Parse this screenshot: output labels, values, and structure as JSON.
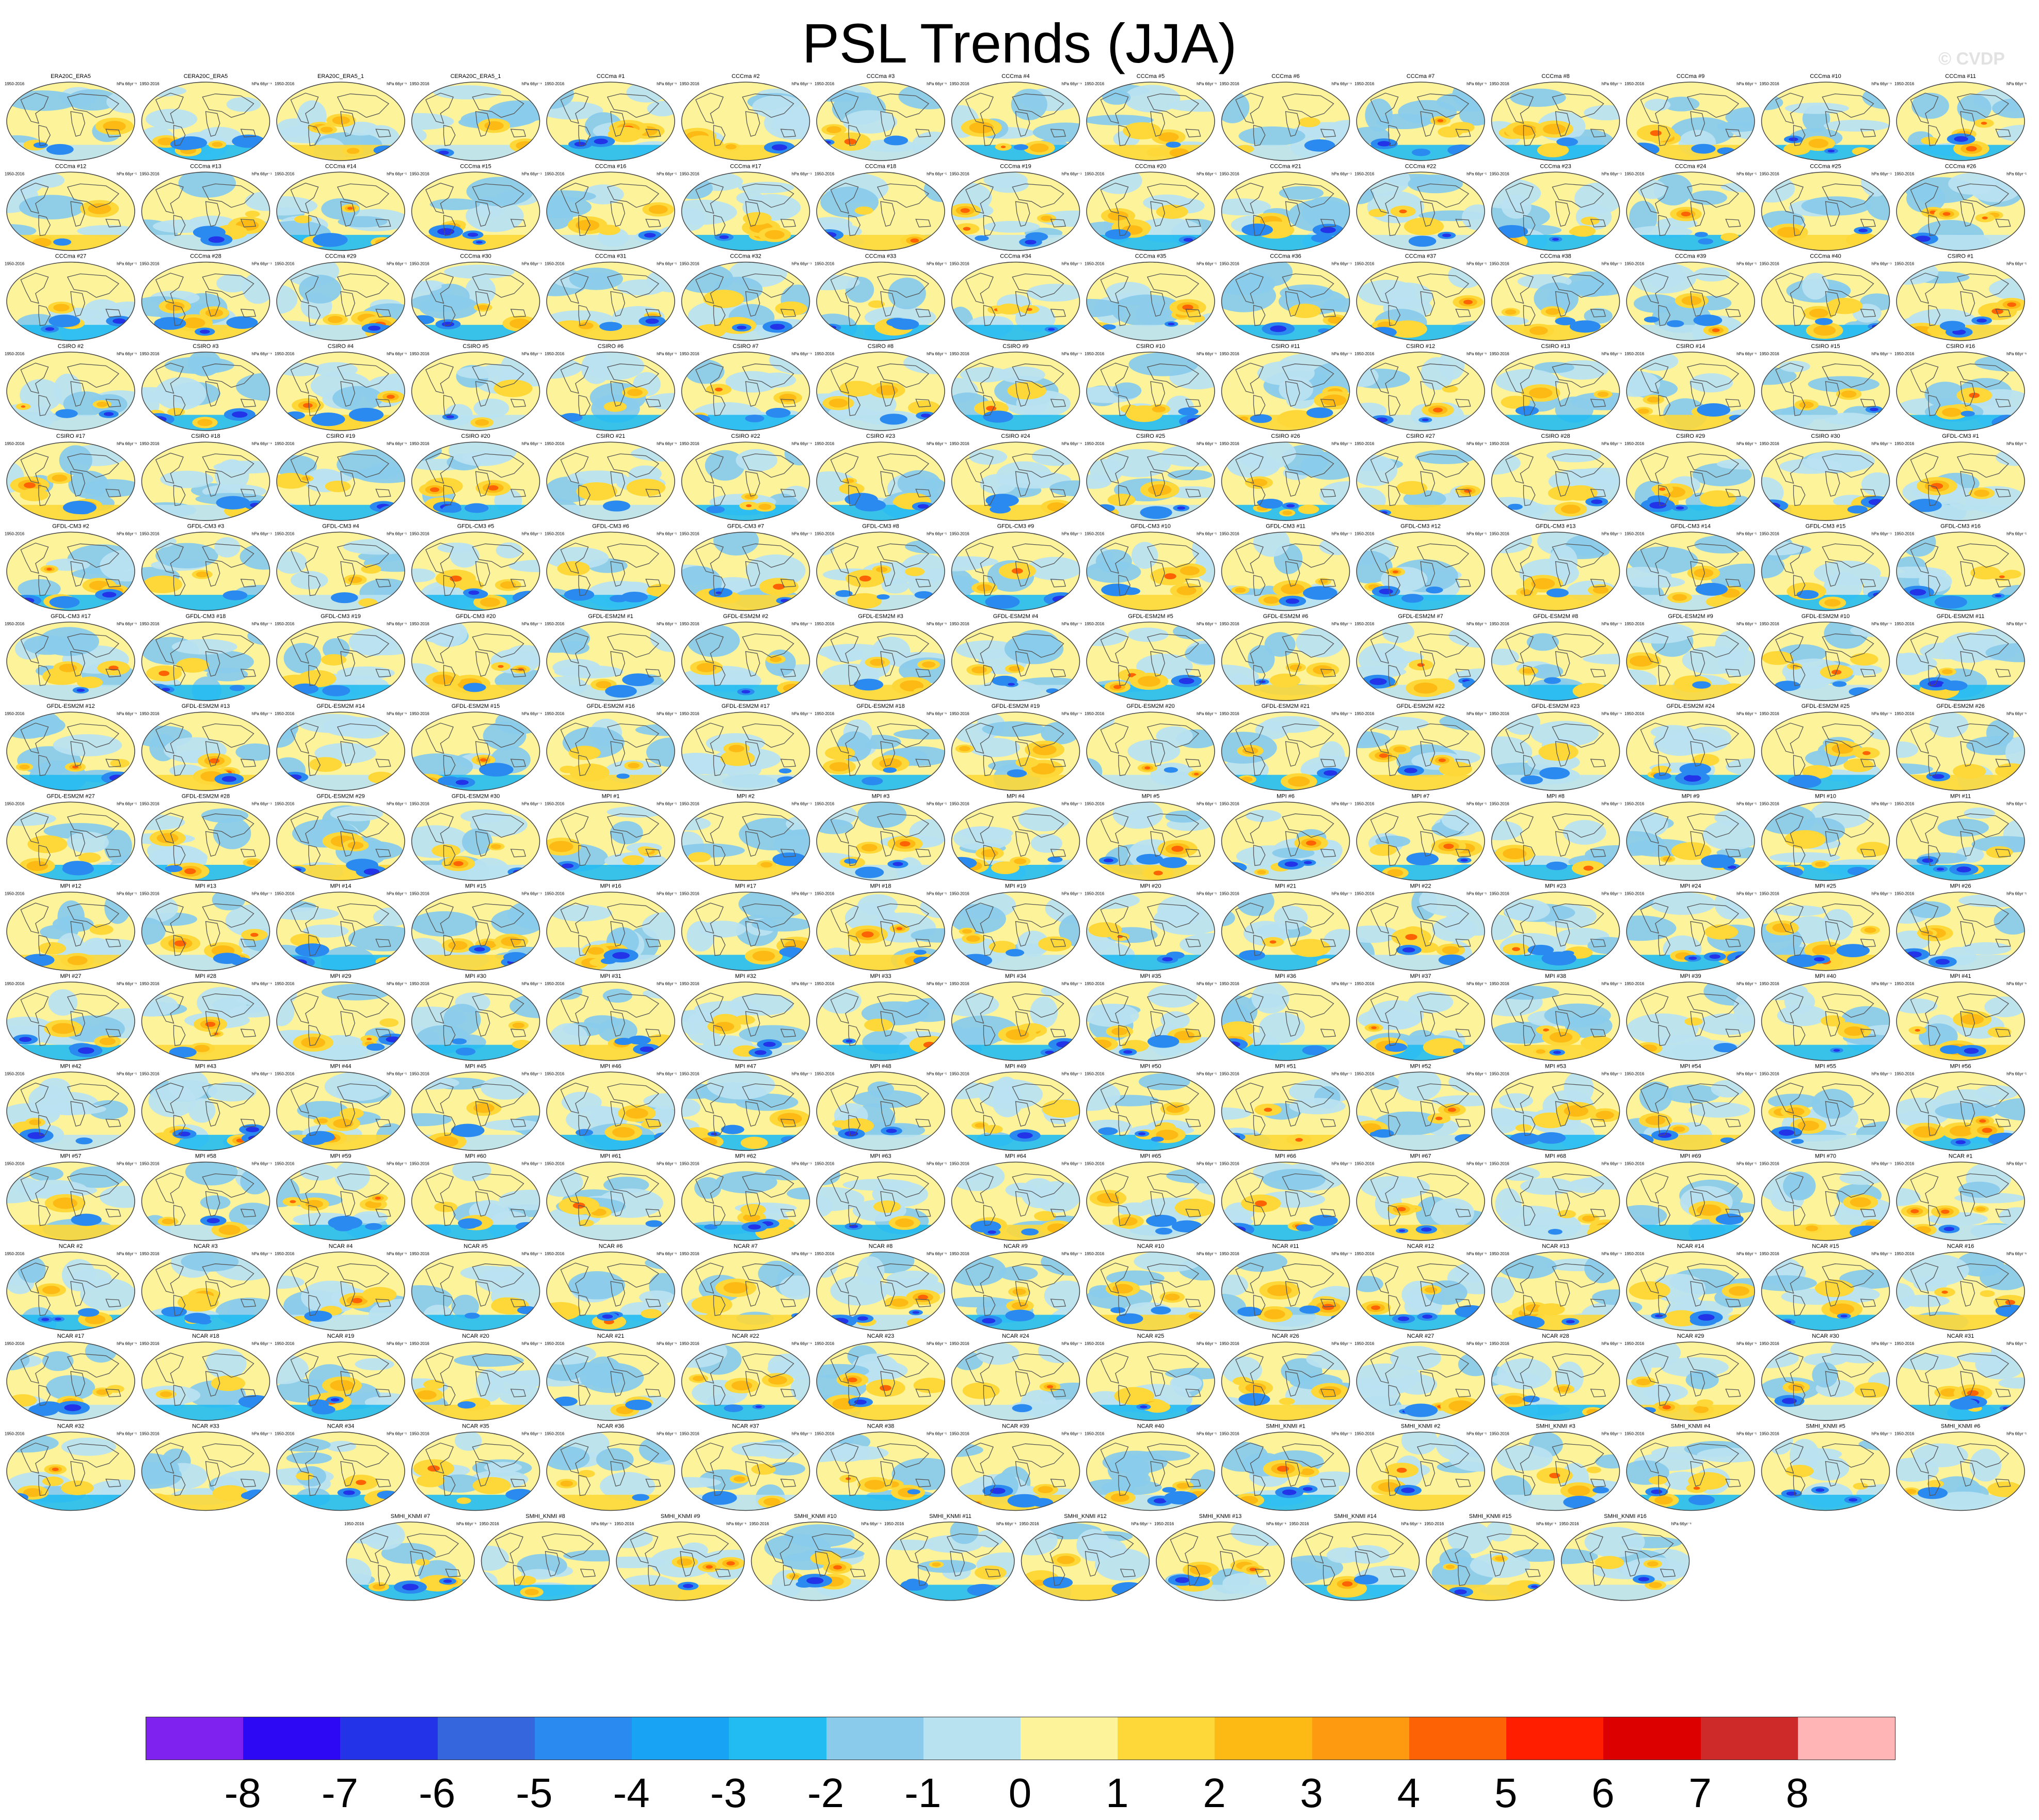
{
  "title": "PSL Trends (JJA)",
  "credit": "© CVDP",
  "colorbar": {
    "colors": [
      "#7f22f0",
      "#2d08f5",
      "#2233e8",
      "#3566de",
      "#2a8af0",
      "#19a3f5",
      "#22bbf2",
      "#8acbeb",
      "#b9e2f1",
      "#fdf39a",
      "#fdd838",
      "#fdb914",
      "#fd9a0f",
      "#fd6205",
      "#ff1f00",
      "#dd0000",
      "#cf2a2a",
      "#ffb5b5"
    ],
    "labels": [
      "-8",
      "-7",
      "-6",
      "-5",
      "-4",
      "-3",
      "-2",
      "-1",
      "0",
      "1",
      "2",
      "3",
      "4",
      "5",
      "6",
      "7",
      "8"
    ]
  },
  "panel_common": {
    "period_left": "1950-2016",
    "units": "hPa 66yr⁻¹"
  },
  "panels": [
    "ERA20C_ERA5",
    "CERA20C_ERA5",
    "ERA20C_ERA5_1",
    "CERA20C_ERA5_1",
    "CCCma #1",
    "CCCma #2",
    "CCCma #3",
    "CCCma #4",
    "CCCma #5",
    "CCCma #6",
    "CCCma #7",
    "CCCma #8",
    "CCCma #9",
    "CCCma #10",
    "CCCma #11",
    "CCCma #12",
    "CCCma #13",
    "CCCma #14",
    "CCCma #15",
    "CCCma #16",
    "CCCma #17",
    "CCCma #18",
    "CCCma #19",
    "CCCma #20",
    "CCCma #21",
    "CCCma #22",
    "CCCma #23",
    "CCCma #24",
    "CCCma #25",
    "CCCma #26",
    "CCCma #27",
    "CCCma #28",
    "CCCma #29",
    "CCCma #30",
    "CCCma #31",
    "CCCma #32",
    "CCCma #33",
    "CCCma #34",
    "CCCma #35",
    "CCCma #36",
    "CCCma #37",
    "CCCma #38",
    "CCCma #39",
    "CCCma #40",
    "CSIRO #1",
    "CSIRO #2",
    "CSIRO #3",
    "CSIRO #4",
    "CSIRO #5",
    "CSIRO #6",
    "CSIRO #7",
    "CSIRO #8",
    "CSIRO #9",
    "CSIRO #10",
    "CSIRO #11",
    "CSIRO #12",
    "CSIRO #13",
    "CSIRO #14",
    "CSIRO #15",
    "CSIRO #16",
    "CSIRO #17",
    "CSIRO #18",
    "CSIRO #19",
    "CSIRO #20",
    "CSIRO #21",
    "CSIRO #22",
    "CSIRO #23",
    "CSIRO #24",
    "CSIRO #25",
    "CSIRO #26",
    "CSIRO #27",
    "CSIRO #28",
    "CSIRO #29",
    "CSIRO #30",
    "GFDL-CM3 #1",
    "GFDL-CM3 #2",
    "GFDL-CM3 #3",
    "GFDL-CM3 #4",
    "GFDL-CM3 #5",
    "GFDL-CM3 #6",
    "GFDL-CM3 #7",
    "GFDL-CM3 #8",
    "GFDL-CM3 #9",
    "GFDL-CM3 #10",
    "GFDL-CM3 #11",
    "GFDL-CM3 #12",
    "GFDL-CM3 #13",
    "GFDL-CM3 #14",
    "GFDL-CM3 #15",
    "GFDL-CM3 #16",
    "GFDL-CM3 #17",
    "GFDL-CM3 #18",
    "GFDL-CM3 #19",
    "GFDL-CM3 #20",
    "GFDL-ESM2M #1",
    "GFDL-ESM2M #2",
    "GFDL-ESM2M #3",
    "GFDL-ESM2M #4",
    "GFDL-ESM2M #5",
    "GFDL-ESM2M #6",
    "GFDL-ESM2M #7",
    "GFDL-ESM2M #8",
    "GFDL-ESM2M #9",
    "GFDL-ESM2M #10",
    "GFDL-ESM2M #11",
    "GFDL-ESM2M #12",
    "GFDL-ESM2M #13",
    "GFDL-ESM2M #14",
    "GFDL-ESM2M #15",
    "GFDL-ESM2M #16",
    "GFDL-ESM2M #17",
    "GFDL-ESM2M #18",
    "GFDL-ESM2M #19",
    "GFDL-ESM2M #20",
    "GFDL-ESM2M #21",
    "GFDL-ESM2M #22",
    "GFDL-ESM2M #23",
    "GFDL-ESM2M #24",
    "GFDL-ESM2M #25",
    "GFDL-ESM2M #26",
    "GFDL-ESM2M #27",
    "GFDL-ESM2M #28",
    "GFDL-ESM2M #29",
    "GFDL-ESM2M #30",
    "MPI #1",
    "MPI #2",
    "MPI #3",
    "MPI #4",
    "MPI #5",
    "MPI #6",
    "MPI #7",
    "MPI #8",
    "MPI #9",
    "MPI #10",
    "MPI #11",
    "MPI #12",
    "MPI #13",
    "MPI #14",
    "MPI #15",
    "MPI #16",
    "MPI #17",
    "MPI #18",
    "MPI #19",
    "MPI #20",
    "MPI #21",
    "MPI #22",
    "MPI #23",
    "MPI #24",
    "MPI #25",
    "MPI #26",
    "MPI #27",
    "MPI #28",
    "MPI #29",
    "MPI #30",
    "MPI #31",
    "MPI #32",
    "MPI #33",
    "MPI #34",
    "MPI #35",
    "MPI #36",
    "MPI #37",
    "MPI #38",
    "MPI #39",
    "MPI #40",
    "MPI #41",
    "MPI #42",
    "MPI #43",
    "MPI #44",
    "MPI #45",
    "MPI #46",
    "MPI #47",
    "MPI #48",
    "MPI #49",
    "MPI #50",
    "MPI #51",
    "MPI #52",
    "MPI #53",
    "MPI #54",
    "MPI #55",
    "MPI #56",
    "MPI #57",
    "MPI #58",
    "MPI #59",
    "MPI #60",
    "MPI #61",
    "MPI #62",
    "MPI #63",
    "MPI #64",
    "MPI #65",
    "MPI #66",
    "MPI #67",
    "MPI #68",
    "MPI #69",
    "MPI #70",
    "NCAR #1",
    "NCAR #2",
    "NCAR #3",
    "NCAR #4",
    "NCAR #5",
    "NCAR #6",
    "NCAR #7",
    "NCAR #8",
    "NCAR #9",
    "NCAR #10",
    "NCAR #11",
    "NCAR #12",
    "NCAR #13",
    "NCAR #14",
    "NCAR #15",
    "NCAR #16",
    "NCAR #17",
    "NCAR #18",
    "NCAR #19",
    "NCAR #20",
    "NCAR #21",
    "NCAR #22",
    "NCAR #23",
    "NCAR #24",
    "NCAR #25",
    "NCAR #26",
    "NCAR #27",
    "NCAR #28",
    "NCAR #29",
    "NCAR #30",
    "NCAR #31",
    "NCAR #32",
    "NCAR #33",
    "NCAR #34",
    "NCAR #35",
    "NCAR #36",
    "NCAR #37",
    "NCAR #38",
    "NCAR #39",
    "NCAR #40",
    "SMHI_KNMI #1",
    "SMHI_KNMI #2",
    "SMHI_KNMI #3",
    "SMHI_KNMI #4",
    "SMHI_KNMI #5",
    "SMHI_KNMI #6",
    "SMHI_KNMI #7",
    "SMHI_KNMI #8",
    "SMHI_KNMI #9",
    "SMHI_KNMI #10",
    "SMHI_KNMI #11",
    "SMHI_KNMI #12",
    "SMHI_KNMI #13",
    "SMHI_KNMI #14",
    "SMHI_KNMI #15",
    "SMHI_KNMI #16"
  ]
}
